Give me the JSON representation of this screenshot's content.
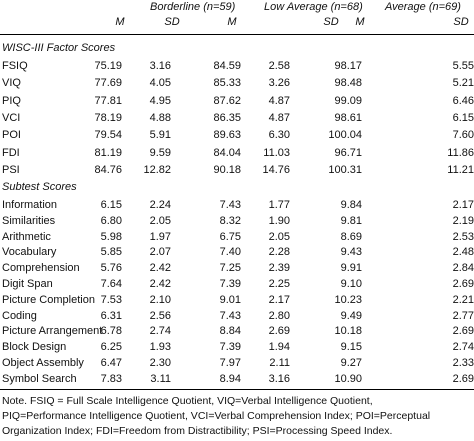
{
  "groups": [
    {
      "label": "Borderline (n=59)",
      "m": "M",
      "sd": "SD"
    },
    {
      "label": "Low Average (n=68)",
      "m": "M",
      "sd": "SD"
    },
    {
      "label": "Average (n=69)",
      "m": "M",
      "sd": "SD"
    }
  ],
  "section1": {
    "title": "WISC-III Factor Scores",
    "rows": [
      {
        "label": "FSIQ",
        "v": [
          "75.19",
          "3.16",
          "84.59",
          "2.58",
          "98.17",
          "5.55"
        ]
      },
      {
        "label": "VIQ",
        "v": [
          "77.69",
          "4.05",
          "85.33",
          "3.26",
          "98.48",
          "5.21"
        ]
      },
      {
        "label": "PIQ",
        "v": [
          "77.81",
          "4.95",
          "87.62",
          "4.87",
          "99.09",
          "6.46"
        ]
      },
      {
        "label": "VCI",
        "v": [
          "78.19",
          "4.88",
          "86.35",
          "4.87",
          "98.61",
          "6.15"
        ]
      },
      {
        "label": "POI",
        "v": [
          "79.54",
          "5.91",
          "89.63",
          "6.30",
          "100.04",
          "7.60"
        ]
      },
      {
        "label": "FDI",
        "v": [
          "81.19",
          "9.59",
          "84.04",
          "11.03",
          "96.71",
          "11.86"
        ]
      },
      {
        "label": "PSI",
        "v": [
          "84.76",
          "12.82",
          "90.18",
          "14.76",
          "100.31",
          "11.21"
        ]
      }
    ]
  },
  "section2": {
    "title": "Subtest Scores",
    "rows": [
      {
        "label": "Information",
        "v": [
          "6.15",
          "2.24",
          "7.43",
          "1.77",
          "9.84",
          "2.17"
        ]
      },
      {
        "label": "Similarities",
        "v": [
          "6.80",
          "2.05",
          "8.32",
          "1.90",
          "9.81",
          "2.19"
        ]
      },
      {
        "label": "Arithmetic",
        "v": [
          "5.98",
          "1.97",
          "6.75",
          "2.05",
          "8.69",
          "2.53"
        ]
      },
      {
        "label": "Vocabulary",
        "v": [
          "5.85",
          "2.07",
          "7.40",
          "2.28",
          "9.43",
          "2.48"
        ]
      },
      {
        "label": "Comprehension",
        "v": [
          "5.76",
          "2.42",
          "7.25",
          "2.39",
          "9.91",
          "2.84"
        ]
      },
      {
        "label": "Digit Span",
        "v": [
          "7.64",
          "2.42",
          "7.39",
          "2.25",
          "9.10",
          "2.69"
        ]
      },
      {
        "label": "Picture Completion",
        "v": [
          "7.53",
          "2.10",
          "9.01",
          "2.17",
          "10.23",
          "2.21"
        ]
      },
      {
        "label": "Coding",
        "v": [
          "6.31",
          "2.56",
          "7.43",
          "2.80",
          "9.49",
          "2.77"
        ]
      },
      {
        "label": "Picture Arrangement",
        "v": [
          "6.78",
          "2.74",
          "8.84",
          "2.69",
          "10.18",
          "2.69"
        ]
      },
      {
        "label": "Block Design",
        "v": [
          "6.25",
          "1.93",
          "7.39",
          "1.94",
          "9.15",
          "2.74"
        ]
      },
      {
        "label": "Object Assembly",
        "v": [
          "6.47",
          "2.30",
          "7.97",
          "2.11",
          "9.27",
          "2.33"
        ]
      },
      {
        "label": "Symbol Search",
        "v": [
          "7.83",
          "3.11",
          "8.94",
          "3.16",
          "10.90",
          "2.69"
        ]
      }
    ]
  },
  "notes": [
    "Note. FSIQ = Full Scale Intelligence Quotient, VIQ=Verbal Intelligence Quotient,",
    "PIQ=Performance Intelligence Quotient, VCI=Verbal Comprehension Index; POI=Perceptual",
    "Organization Index; FDI=Freedom from Distractibility; PSI=Processing Speed Index."
  ]
}
